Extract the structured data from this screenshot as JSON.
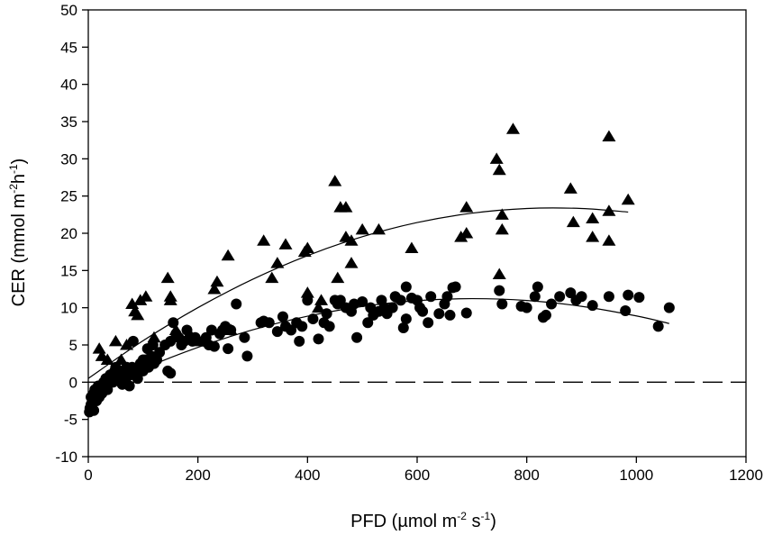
{
  "chart_data": {
    "type": "scatter",
    "title": "",
    "xlabel": {
      "main": "PFD (µmol m",
      "sup1": "-2",
      "mid": " s",
      "sup2": "-1",
      "end": ")"
    },
    "ylabel": {
      "main": "CER (mmol m",
      "sup1": "-2",
      "mid": "h",
      "sup2": "-1",
      "end": ")"
    },
    "xlim": [
      0,
      1200
    ],
    "ylim": [
      -10,
      50
    ],
    "xticks": [
      "0",
      "200",
      "400",
      "600",
      "800",
      "1000",
      "1200"
    ],
    "yticks": [
      "-10",
      "-5",
      "0",
      "5",
      "10",
      "15",
      "20",
      "25",
      "30",
      "35",
      "40",
      "45",
      "50"
    ],
    "grid": false,
    "reference_line": {
      "y": 0,
      "style": "dashed"
    },
    "series": [
      {
        "marker": "triangle",
        "color": "#000000",
        "points": [
          [
            20,
            4.5
          ],
          [
            25,
            3.5
          ],
          [
            35,
            3
          ],
          [
            50,
            5.5
          ],
          [
            60,
            3
          ],
          [
            70,
            5
          ],
          [
            80,
            10.5
          ],
          [
            85,
            9.5
          ],
          [
            90,
            9
          ],
          [
            95,
            11
          ],
          [
            105,
            11.5
          ],
          [
            120,
            6
          ],
          [
            145,
            14
          ],
          [
            150,
            11.5
          ],
          [
            150,
            11
          ],
          [
            160,
            7
          ],
          [
            185,
            6.5
          ],
          [
            200,
            5.5
          ],
          [
            230,
            12.5
          ],
          [
            235,
            13.5
          ],
          [
            255,
            17
          ],
          [
            260,
            7
          ],
          [
            320,
            19
          ],
          [
            335,
            14
          ],
          [
            345,
            16
          ],
          [
            360,
            18.5
          ],
          [
            395,
            17.5
          ],
          [
            400,
            18
          ],
          [
            400,
            12
          ],
          [
            420,
            10
          ],
          [
            425,
            11
          ],
          [
            450,
            27
          ],
          [
            455,
            14
          ],
          [
            460,
            23.5
          ],
          [
            470,
            23.5
          ],
          [
            470,
            19.5
          ],
          [
            480,
            19
          ],
          [
            480,
            16
          ],
          [
            500,
            20.5
          ],
          [
            530,
            20.5
          ],
          [
            590,
            18
          ],
          [
            680,
            19.5
          ],
          [
            690,
            23.5
          ],
          [
            690,
            20
          ],
          [
            745,
            30
          ],
          [
            750,
            28.5
          ],
          [
            755,
            20.5
          ],
          [
            755,
            22.5
          ],
          [
            750,
            14.5
          ],
          [
            775,
            34
          ],
          [
            880,
            26
          ],
          [
            885,
            21.5
          ],
          [
            920,
            22
          ],
          [
            920,
            19.5
          ],
          [
            950,
            33
          ],
          [
            950,
            23
          ],
          [
            950,
            19
          ],
          [
            985,
            24.5
          ]
        ],
        "fit": [
          [
            0,
            0.5
          ],
          [
            100,
            5.57
          ],
          [
            200,
            10.01
          ],
          [
            300,
            13.82
          ],
          [
            400,
            17.0
          ],
          [
            500,
            19.54
          ],
          [
            600,
            21.44
          ],
          [
            700,
            22.7
          ],
          [
            800,
            23.33
          ],
          [
            900,
            23.33
          ],
          [
            985,
            22.85
          ]
        ]
      },
      {
        "marker": "circle",
        "color": "#000000",
        "points": [
          [
            2,
            -4
          ],
          [
            3,
            -3.5
          ],
          [
            5,
            -3
          ],
          [
            5,
            -2
          ],
          [
            8,
            -2.5
          ],
          [
            10,
            -1.5
          ],
          [
            10,
            -3.8
          ],
          [
            12,
            -1
          ],
          [
            15,
            -2.5
          ],
          [
            15,
            -1.8
          ],
          [
            18,
            -0.5
          ],
          [
            20,
            -2
          ],
          [
            22,
            -1
          ],
          [
            25,
            -1.5
          ],
          [
            28,
            0
          ],
          [
            30,
            -0.5
          ],
          [
            32,
            0.5
          ],
          [
            35,
            -1
          ],
          [
            40,
            0.5
          ],
          [
            40,
            1
          ],
          [
            45,
            0
          ],
          [
            48,
            1.5
          ],
          [
            50,
            2
          ],
          [
            55,
            0.5
          ],
          [
            58,
            1
          ],
          [
            60,
            1.5
          ],
          [
            62,
            -0.3
          ],
          [
            65,
            0
          ],
          [
            70,
            2
          ],
          [
            72,
            0.8
          ],
          [
            75,
            -0.5
          ],
          [
            78,
            1
          ],
          [
            80,
            2
          ],
          [
            82,
            5.5
          ],
          [
            85,
            1.5
          ],
          [
            90,
            0.5
          ],
          [
            95,
            2.5
          ],
          [
            100,
            1.5
          ],
          [
            100,
            3
          ],
          [
            105,
            3
          ],
          [
            108,
            4.5
          ],
          [
            110,
            2
          ],
          [
            115,
            3.5
          ],
          [
            118,
            5
          ],
          [
            120,
            2.5
          ],
          [
            125,
            3
          ],
          [
            130,
            4
          ],
          [
            140,
            5
          ],
          [
            145,
            1.5
          ],
          [
            150,
            1.2
          ],
          [
            150,
            5.5
          ],
          [
            155,
            8
          ],
          [
            160,
            6.5
          ],
          [
            165,
            6
          ],
          [
            170,
            5
          ],
          [
            175,
            5.5
          ],
          [
            180,
            7
          ],
          [
            185,
            6
          ],
          [
            190,
            5.5
          ],
          [
            195,
            6
          ],
          [
            210,
            5.5
          ],
          [
            215,
            6
          ],
          [
            220,
            5
          ],
          [
            225,
            7
          ],
          [
            230,
            4.8
          ],
          [
            240,
            6.5
          ],
          [
            245,
            7
          ],
          [
            250,
            7.5
          ],
          [
            255,
            4.5
          ],
          [
            260,
            7
          ],
          [
            270,
            10.5
          ],
          [
            285,
            6
          ],
          [
            290,
            3.5
          ],
          [
            315,
            8
          ],
          [
            320,
            8.2
          ],
          [
            330,
            8
          ],
          [
            345,
            6.8
          ],
          [
            355,
            8.8
          ],
          [
            360,
            7.5
          ],
          [
            370,
            7
          ],
          [
            380,
            8
          ],
          [
            385,
            5.5
          ],
          [
            390,
            7.5
          ],
          [
            400,
            11
          ],
          [
            410,
            8.5
          ],
          [
            420,
            5.8
          ],
          [
            430,
            8
          ],
          [
            435,
            9.2
          ],
          [
            440,
            7.5
          ],
          [
            450,
            11
          ],
          [
            455,
            10.5
          ],
          [
            460,
            11
          ],
          [
            470,
            10
          ],
          [
            480,
            9.5
          ],
          [
            485,
            10.5
          ],
          [
            490,
            6
          ],
          [
            500,
            10.8
          ],
          [
            510,
            8
          ],
          [
            515,
            10
          ],
          [
            520,
            9
          ],
          [
            530,
            9.5
          ],
          [
            535,
            11
          ],
          [
            540,
            10
          ],
          [
            545,
            9.2
          ],
          [
            555,
            10
          ],
          [
            560,
            11.5
          ],
          [
            570,
            11
          ],
          [
            575,
            7.3
          ],
          [
            580,
            8.5
          ],
          [
            580,
            12.8
          ],
          [
            590,
            11.3
          ],
          [
            600,
            11
          ],
          [
            605,
            10
          ],
          [
            610,
            9.5
          ],
          [
            620,
            8
          ],
          [
            625,
            11.5
          ],
          [
            640,
            9.2
          ],
          [
            650,
            10.5
          ],
          [
            655,
            11.5
          ],
          [
            660,
            9
          ],
          [
            665,
            12.7
          ],
          [
            670,
            12.8
          ],
          [
            690,
            9.3
          ],
          [
            750,
            12.3
          ],
          [
            755,
            10.5
          ],
          [
            790,
            10.2
          ],
          [
            800,
            10
          ],
          [
            815,
            11.5
          ],
          [
            820,
            12.8
          ],
          [
            830,
            8.7
          ],
          [
            835,
            9
          ],
          [
            845,
            10.5
          ],
          [
            860,
            11.5
          ],
          [
            880,
            12
          ],
          [
            890,
            11
          ],
          [
            900,
            11.5
          ],
          [
            920,
            10.3
          ],
          [
            950,
            11.5
          ],
          [
            980,
            9.6
          ],
          [
            985,
            11.7
          ],
          [
            1005,
            11.4
          ],
          [
            1040,
            7.5
          ],
          [
            1060,
            10
          ]
        ],
        "fit": [
          [
            0,
            -1.6
          ],
          [
            100,
            1.8
          ],
          [
            200,
            4.68
          ],
          [
            300,
            7.03
          ],
          [
            400,
            8.86
          ],
          [
            500,
            10.17
          ],
          [
            600,
            10.96
          ],
          [
            700,
            11.22
          ],
          [
            800,
            10.97
          ],
          [
            900,
            10.19
          ],
          [
            1000,
            8.9
          ],
          [
            1060,
            7.88
          ]
        ]
      }
    ]
  }
}
